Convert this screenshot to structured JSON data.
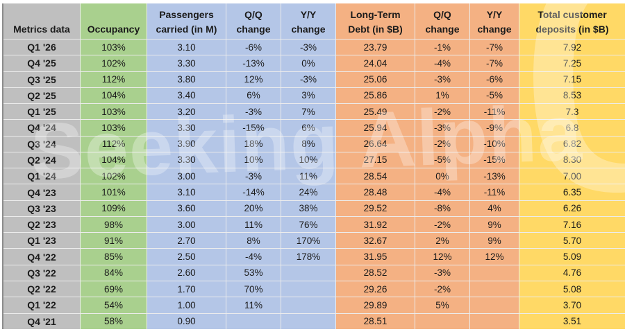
{
  "watermark": {
    "text": "Seeking Alpha",
    "symbol": "α"
  },
  "colors": {
    "gray": "#BFBFBF",
    "green": "#A9D08E",
    "blue": "#B4C6E7",
    "orange": "#F4B183",
    "yellow": "#FFD966",
    "gridline": "#ECECEC",
    "table_border": "#8C8C8C",
    "text": "#1B1B1B"
  },
  "chart_data": {
    "type": "table",
    "title": "Metrics data",
    "columns": [
      {
        "label": "Metrics data",
        "color_key": "gray"
      },
      {
        "label": "Occupancy",
        "color_key": "green"
      },
      {
        "label": "Passengers\ncarried (in M)",
        "color_key": "blue"
      },
      {
        "label": "Q/Q\nchange",
        "color_key": "blue"
      },
      {
        "label": "Y/Y\nchange",
        "color_key": "blue"
      },
      {
        "label": "Long-Term\nDebt (in $B)",
        "color_key": "orange"
      },
      {
        "label": "Q/Q\nchange",
        "color_key": "orange"
      },
      {
        "label": "Y/Y\nchange",
        "color_key": "orange"
      },
      {
        "label": "Total customer\ndeposits (in $B)",
        "color_key": "yellow"
      }
    ],
    "rows": [
      [
        "Q1 '26",
        "103%",
        "3.10",
        "-6%",
        "-3%",
        "23.79",
        "-1%",
        "-7%",
        "7.92"
      ],
      [
        "Q4 '25",
        "102%",
        "3.30",
        "-13%",
        "0%",
        "24.04",
        "-4%",
        "-7%",
        "7.25"
      ],
      [
        "Q3 '25",
        "112%",
        "3.80",
        "12%",
        "-3%",
        "25.06",
        "-3%",
        "-6%",
        "7.15"
      ],
      [
        "Q2 '25",
        "104%",
        "3.40",
        "6%",
        "3%",
        "25.86",
        "1%",
        "-5%",
        "8.53"
      ],
      [
        "Q1 '25",
        "103%",
        "3.20",
        "-3%",
        "7%",
        "25.49",
        "-2%",
        "-11%",
        "7.3"
      ],
      [
        "Q4 '24",
        "103%",
        "3.30",
        "-15%",
        "6%",
        "25.94",
        "-3%",
        "-9%",
        "6.8"
      ],
      [
        "Q3 '24",
        "112%",
        "3.90",
        "18%",
        "8%",
        "26.64",
        "-2%",
        "-10%",
        "6.82"
      ],
      [
        "Q2 '24",
        "104%",
        "3.30",
        "10%",
        "10%",
        "27.15",
        "-5%",
        "-15%",
        "8.30"
      ],
      [
        "Q1 '24",
        "102%",
        "3.00",
        "-3%",
        "11%",
        "28.54",
        "0%",
        "-13%",
        "7.00"
      ],
      [
        "Q4 '23",
        "101%",
        "3.10",
        "-14%",
        "24%",
        "28.48",
        "-4%",
        "-11%",
        "6.35"
      ],
      [
        "Q3 '23",
        "109%",
        "3.60",
        "20%",
        "38%",
        "29.52",
        "-8%",
        "4%",
        "6.26"
      ],
      [
        "Q2 '23",
        "98%",
        "3.00",
        "11%",
        "76%",
        "31.92",
        "-2%",
        "9%",
        "7.16"
      ],
      [
        "Q1 '23",
        "91%",
        "2.70",
        "8%",
        "170%",
        "32.67",
        "2%",
        "9%",
        "5.70"
      ],
      [
        "Q4 '22",
        "85%",
        "2.50",
        "-4%",
        "178%",
        "31.95",
        "12%",
        "12%",
        "5.09"
      ],
      [
        "Q3 '22",
        "84%",
        "2.60",
        "53%",
        "",
        "28.52",
        "-3%",
        "",
        "4.76"
      ],
      [
        "Q2 '22",
        "69%",
        "1.70",
        "70%",
        "",
        "29.26",
        "-2%",
        "",
        "5.08"
      ],
      [
        "Q1 '22",
        "54%",
        "1.00",
        "11%",
        "",
        "29.89",
        "5%",
        "",
        "3.70"
      ],
      [
        "Q4 '21",
        "58%",
        "0.90",
        "",
        "",
        "28.51",
        "",
        "",
        "3.51"
      ]
    ]
  }
}
